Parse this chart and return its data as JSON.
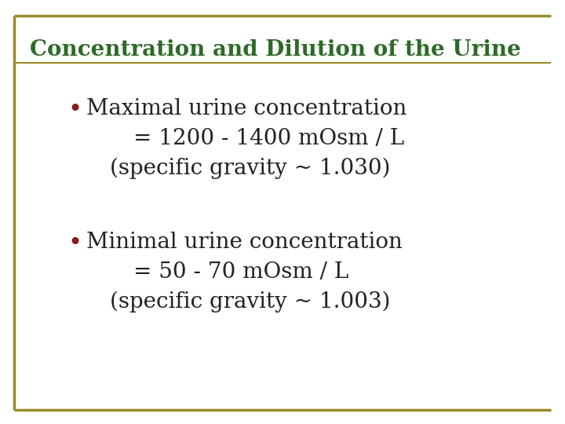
{
  "title": "Concentration and Dilution of the Urine",
  "title_color": "#2d6a27",
  "title_fontsize": 20,
  "background_color": "#ffffff",
  "border_color": "#9B8B2A",
  "bullet_color": "#8B1A1A",
  "bullet1_line1": "Maximal urine concentration",
  "bullet1_line2": "= 1200 - 1400 mOsm / L",
  "bullet1_line3": "(specific gravity ~ 1.030)",
  "bullet2_line1": "Minimal urine concentration",
  "bullet2_line2": "= 50 - 70 mOsm / L",
  "bullet2_line3": "(specific gravity ~ 1.003)",
  "body_fontsize": 20,
  "body_color": "#222222",
  "figwidth": 7.2,
  "figheight": 5.4,
  "dpi": 100
}
